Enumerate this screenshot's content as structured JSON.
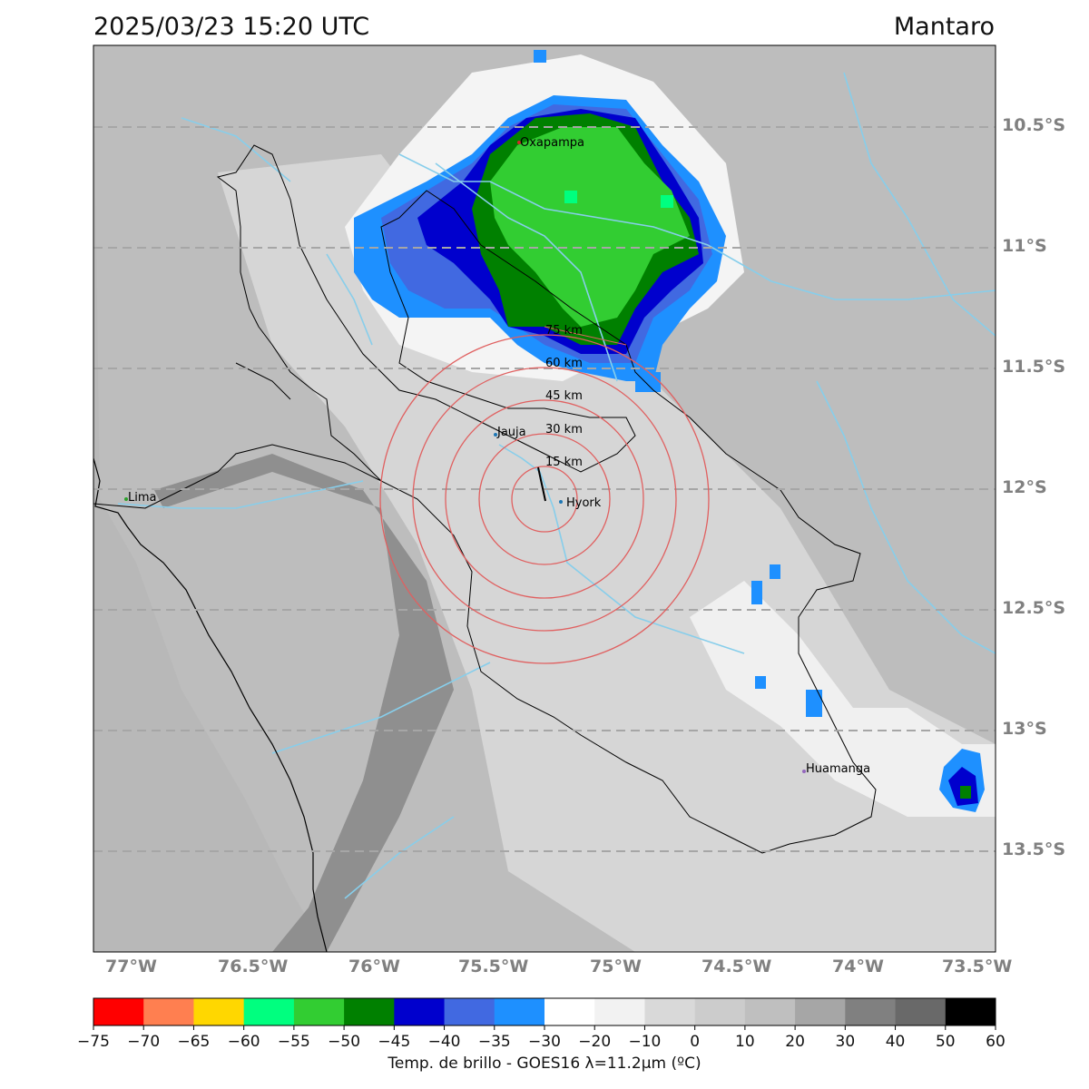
{
  "title": {
    "datetime": "2025/03/23 15:20 UTC",
    "region": "Mantaro"
  },
  "map": {
    "latitude_labels": [
      "10.5°S",
      "11°S",
      "11.5°S",
      "12°S",
      "12.5°S",
      "13°S",
      "13.5°S"
    ],
    "longitude_labels": [
      "77°W",
      "76.5°W",
      "76°W",
      "75.5°W",
      "75°W",
      "74.5°W",
      "74°W",
      "73.5°W"
    ],
    "cities": [
      {
        "name": "Oxapampa",
        "color": "#d62728"
      },
      {
        "name": "Jauja",
        "color": "#1f77b4"
      },
      {
        "name": "Lima",
        "color": "#2ca02c"
      },
      {
        "name": "Hyork",
        "color": "#1f77b4"
      },
      {
        "name": "Huamanga",
        "color": "#9467bd"
      }
    ],
    "range_rings": [
      "15 km",
      "30 km",
      "45 km",
      "60 km",
      "75 km"
    ],
    "gridline_color": "#a6a6a6",
    "river_color": "#87ceeb",
    "ring_color": "#e06060"
  },
  "colorbar": {
    "ticks": [
      "−75",
      "−70",
      "−65",
      "−60",
      "−55",
      "−50",
      "−45",
      "−40",
      "−35",
      "−30",
      "−20",
      "−10",
      "0",
      "10",
      "20",
      "30",
      "40",
      "50",
      "60"
    ],
    "colors": [
      "#ff0000",
      "#ff7f50",
      "#ffd700",
      "#00ff7f",
      "#32cd32",
      "#008000",
      "#0000cd",
      "#4169e1",
      "#1e90ff",
      "#ffffff",
      "#f2f2f2",
      "#d9d9d9",
      "#cccccc",
      "#bfbfbf",
      "#a6a6a6",
      "#808080",
      "#696969",
      "#000000"
    ],
    "label": "Temp. de brillo - GOES16 λ=11.2μm (ºC)"
  }
}
